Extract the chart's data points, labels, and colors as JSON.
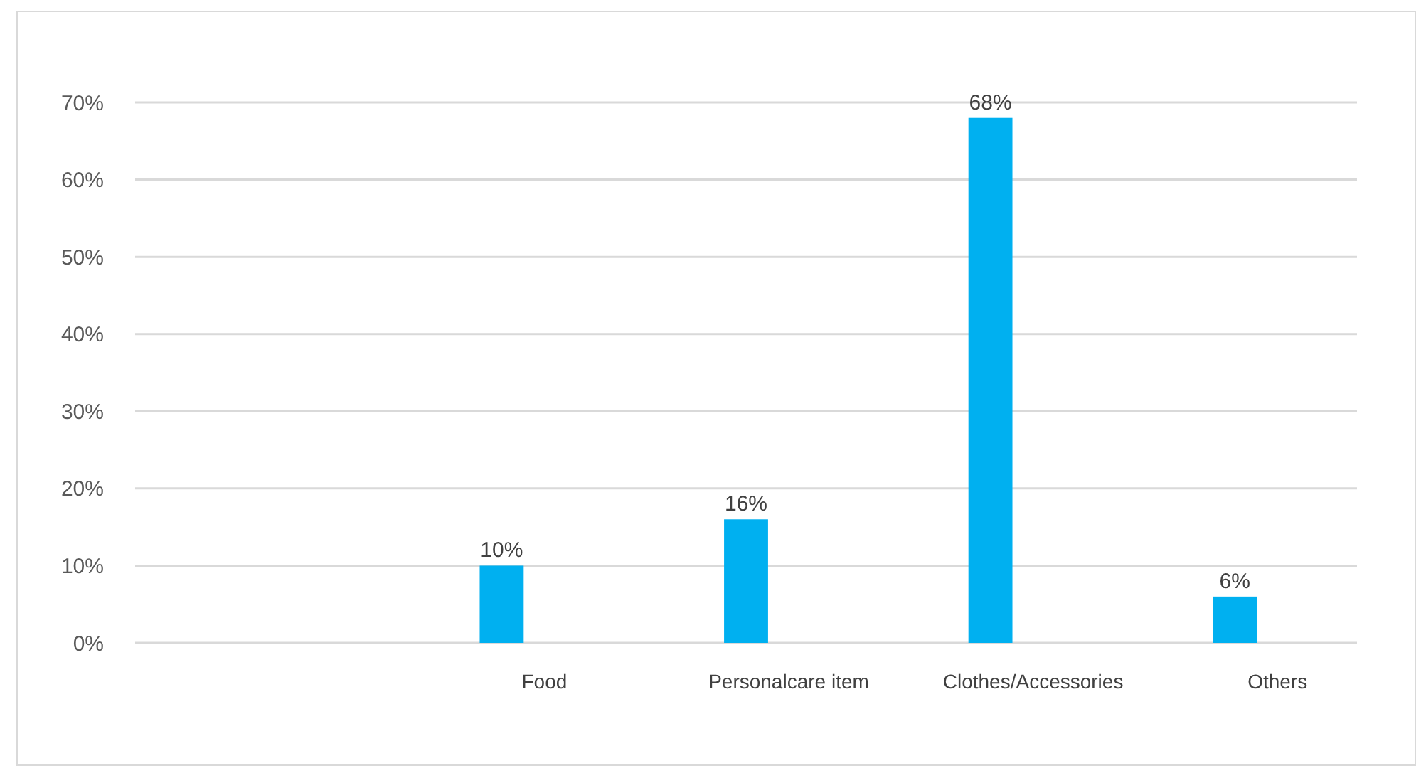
{
  "chart_data": {
    "type": "bar",
    "categories": [
      null,
      "Food",
      "Personalcare item",
      "Clothes/Accessories",
      "Others"
    ],
    "series": [
      {
        "color": "#00b0f0",
        "values": [
          null,
          10,
          16,
          68,
          6
        ],
        "value_labels": [
          null,
          "10%",
          "16%",
          "68%",
          "6%"
        ]
      }
    ],
    "ylim": [
      0,
      70
    ],
    "yticks": [
      {
        "value": 0,
        "label": "0%"
      },
      {
        "value": 10,
        "label": "10%"
      },
      {
        "value": 20,
        "label": "20%"
      },
      {
        "value": 30,
        "label": "30%"
      },
      {
        "value": 40,
        "label": "40%"
      },
      {
        "value": 50,
        "label": "50%"
      },
      {
        "value": 60,
        "label": "60%"
      },
      {
        "value": 70,
        "label": "70%"
      }
    ],
    "grid": "y"
  }
}
